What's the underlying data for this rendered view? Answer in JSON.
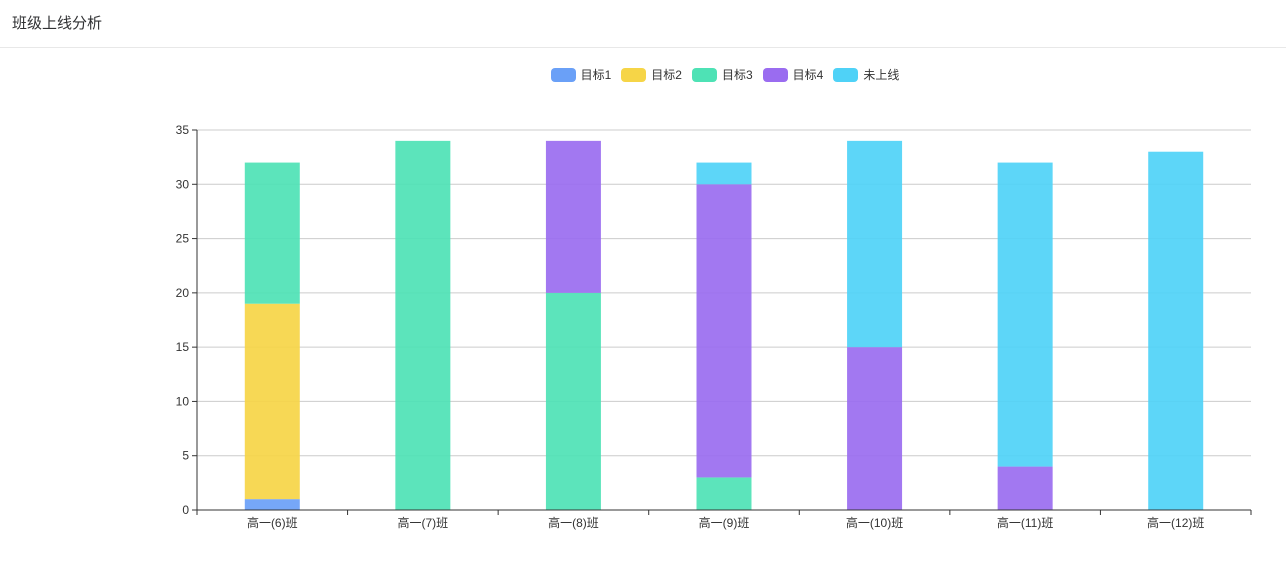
{
  "header": {
    "title": "班级上线分析"
  },
  "chart_data": {
    "type": "bar",
    "stacked": true,
    "categories": [
      "高一(6)班",
      "高一(7)班",
      "高一(8)班",
      "高一(9)班",
      "高一(10)班",
      "高一(11)班",
      "高一(12)班"
    ],
    "series": [
      {
        "name": "目标1",
        "color": "#6aa0f7",
        "values": [
          1,
          0,
          0,
          0,
          0,
          0,
          0
        ]
      },
      {
        "name": "目标2",
        "color": "#f6d547",
        "values": [
          18,
          0,
          0,
          0,
          0,
          0,
          0
        ]
      },
      {
        "name": "目标3",
        "color": "#4ee2b5",
        "values": [
          13,
          34,
          20,
          3,
          0,
          0,
          0
        ]
      },
      {
        "name": "目标4",
        "color": "#9a6cf0",
        "values": [
          0,
          0,
          14,
          27,
          15,
          4,
          0
        ]
      },
      {
        "name": "未上线",
        "color": "#4fd2f7",
        "values": [
          0,
          0,
          0,
          2,
          19,
          28,
          33
        ]
      }
    ],
    "ylim": [
      0,
      35
    ],
    "yticks": [
      0,
      5,
      10,
      15,
      20,
      25,
      30,
      35
    ],
    "grid": true,
    "legend_position": "top-center"
  }
}
